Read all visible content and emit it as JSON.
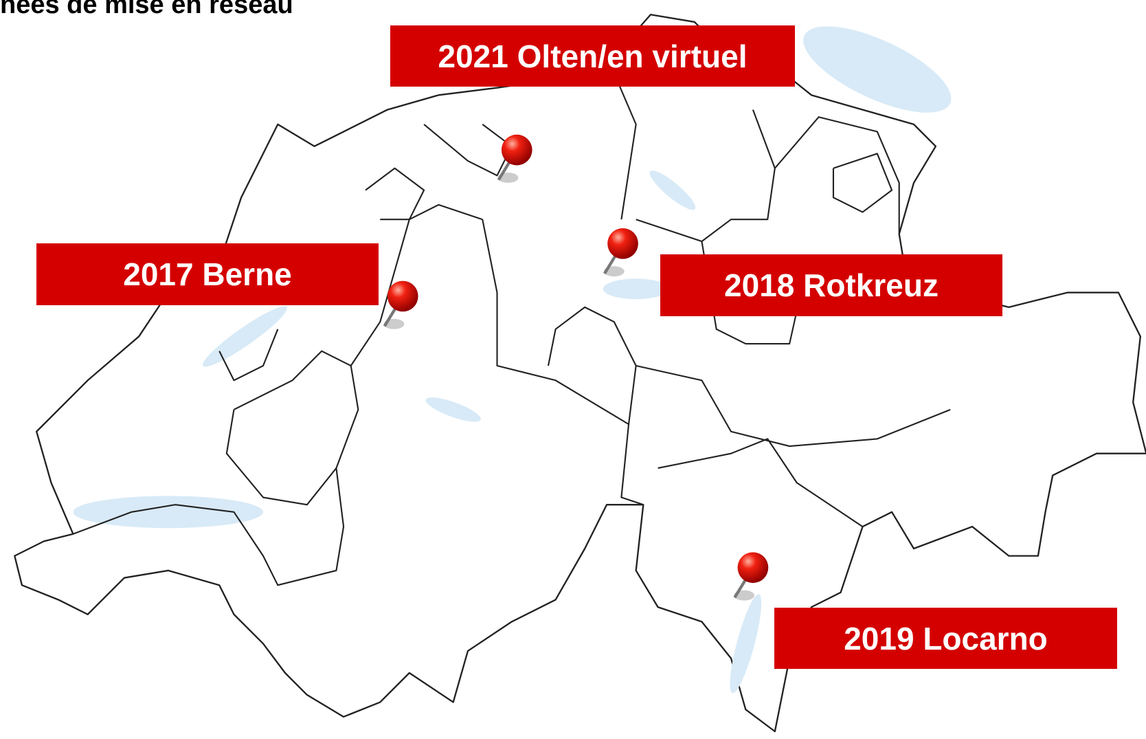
{
  "header": {
    "title": "nées de mise en réseau"
  },
  "labels": [
    {
      "text": "2021 Olten/en virtuel"
    },
    {
      "text": "2017 Berne"
    },
    {
      "text": "2018 Rotkreuz"
    },
    {
      "text": "2019 Locarno"
    }
  ]
}
